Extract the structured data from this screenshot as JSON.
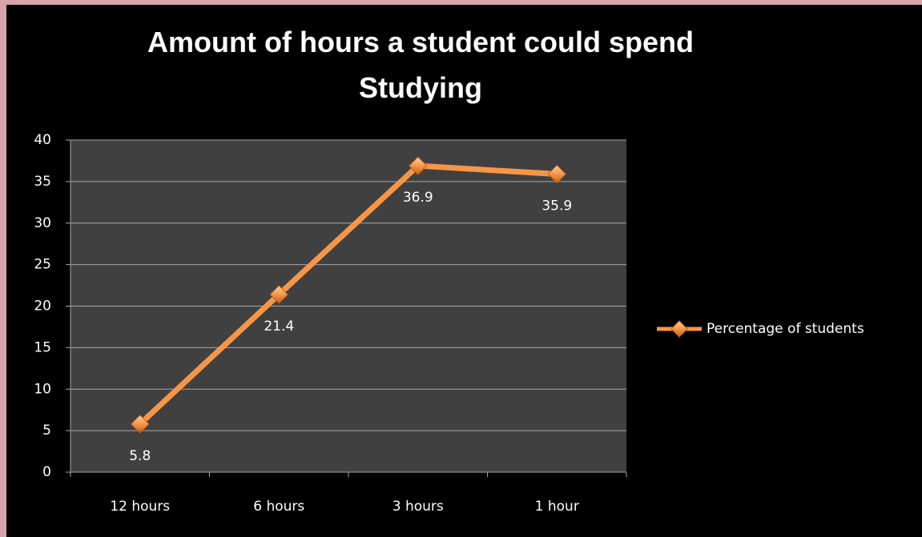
{
  "chart_data": {
    "type": "line",
    "title": "Amount of hours a student could spend Studying",
    "categories": [
      "12 hours",
      "6 hours",
      "3 hours",
      "1 hour"
    ],
    "series": [
      {
        "name": "Percentage of students",
        "color": "#f79646",
        "values": [
          5.8,
          21.4,
          36.9,
          35.9
        ]
      }
    ],
    "ylim": [
      0,
      40
    ],
    "yticks": [
      0,
      5,
      10,
      15,
      20,
      25,
      30,
      35,
      40
    ],
    "grid": true,
    "legend": "right"
  }
}
